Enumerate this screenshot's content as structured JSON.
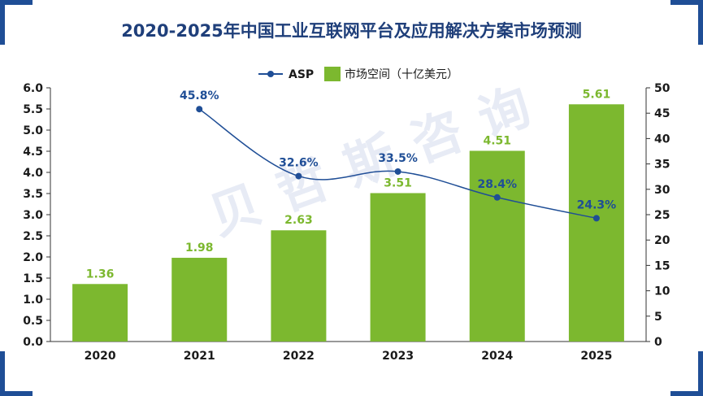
{
  "colors": {
    "bar": "#7cb82f",
    "line": "#1f4e96",
    "title": "#1f3f7a",
    "corner": "#1f4e96"
  },
  "watermark": "贝哲斯咨询",
  "chart_data": {
    "type": "bar+line",
    "title": "2020-2025年中国工业互联网平台及应用解决方案市场预测",
    "categories": [
      "2020",
      "2021",
      "2022",
      "2023",
      "2024",
      "2025"
    ],
    "series": [
      {
        "name": "市场空间（十亿美元）",
        "type": "bar",
        "axis": "left",
        "values": [
          1.36,
          1.98,
          2.63,
          3.51,
          4.51,
          5.61
        ],
        "labels": [
          "1.36",
          "1.98",
          "2.63",
          "3.51",
          "4.51",
          "5.61"
        ]
      },
      {
        "name": "ASP",
        "type": "line",
        "axis": "right",
        "values": [
          null,
          45.8,
          32.6,
          33.5,
          28.4,
          24.3
        ],
        "labels": [
          "",
          "45.8%",
          "32.6%",
          "33.5%",
          "28.4%",
          "24.3%"
        ]
      }
    ],
    "y_left": {
      "min": 0,
      "max": 6,
      "step": 0.5,
      "ticks": [
        "0.0",
        "0.5",
        "1.0",
        "1.5",
        "2.0",
        "2.5",
        "3.0",
        "3.5",
        "4.0",
        "4.5",
        "5.0",
        "5.5",
        "6.0"
      ]
    },
    "y_right": {
      "min": 0,
      "max": 50,
      "step": 5,
      "ticks": [
        "0",
        "5",
        "10",
        "15",
        "20",
        "25",
        "30",
        "35",
        "40",
        "45",
        "50"
      ]
    },
    "legend": {
      "position": "top",
      "items": [
        "ASP",
        "市场空间（十亿美元）"
      ]
    },
    "grid": false
  }
}
